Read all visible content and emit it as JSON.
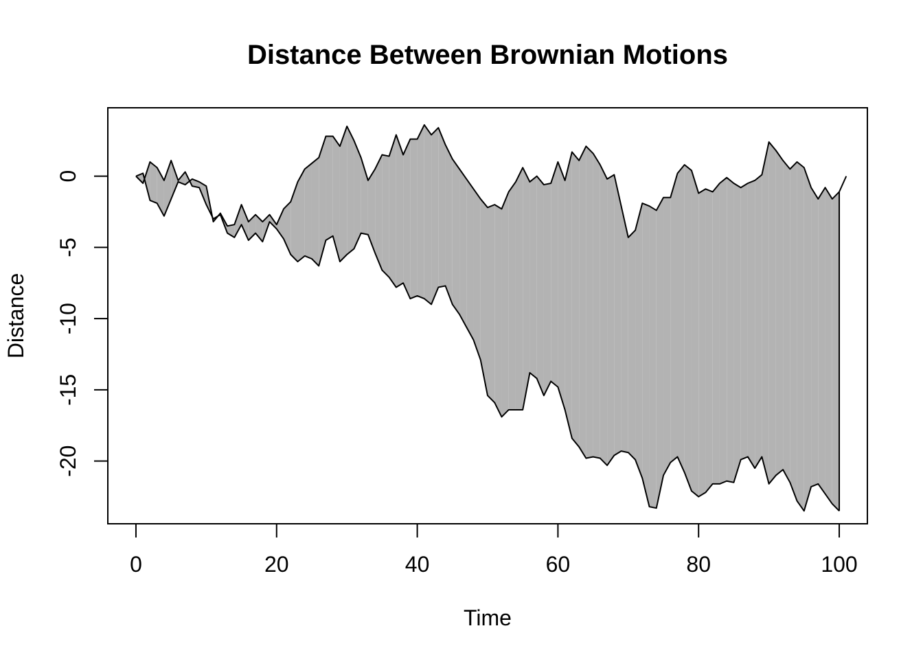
{
  "chart_data": {
    "type": "area",
    "title": "Distance Between Brownian Motions",
    "xlabel": "Time",
    "ylabel": "Distance",
    "xlim": [
      -4,
      104
    ],
    "ylim": [
      -24.4,
      4.8
    ],
    "x_ticks": [
      0,
      20,
      40,
      60,
      80,
      100
    ],
    "x_tick_labels": [
      "0",
      "20",
      "40",
      "60",
      "80",
      "100"
    ],
    "y_ticks": [
      0,
      -5,
      -10,
      -15,
      -20
    ],
    "y_tick_labels": [
      "0",
      "-5",
      "-10",
      "-15",
      "-20"
    ],
    "grid": false,
    "fill_color": "#b3b3b3",
    "line_color": "#000000",
    "series": [
      {
        "values": [
          0.0,
          0.2,
          -1.7,
          -1.9,
          -2.8,
          -1.6,
          -0.4,
          -0.6,
          -0.2,
          -0.4,
          -0.7,
          -3.2,
          -2.6,
          -3.5,
          -3.4,
          -2.0,
          -3.2,
          -2.7,
          -3.2,
          -2.7,
          -3.4,
          -2.3,
          -1.8,
          -0.4,
          0.5,
          0.9,
          1.3,
          2.8,
          2.8,
          2.1,
          3.5,
          2.5,
          1.3,
          -0.3,
          0.5,
          1.5,
          1.4,
          2.9,
          1.5,
          2.6,
          2.6,
          3.6,
          2.9,
          3.4,
          2.2,
          1.2,
          0.5,
          -0.2,
          -0.9,
          -1.6,
          -2.2,
          -2.0,
          -2.3,
          -1.1,
          -0.4,
          0.6,
          -0.4,
          0.0,
          -0.6,
          -0.5,
          1.0,
          -0.3,
          1.7,
          1.1,
          2.1,
          1.6,
          0.8,
          -0.2,
          0.1,
          -2.1,
          -4.3,
          -3.8,
          -1.9,
          -2.1,
          -2.4,
          -1.5,
          -1.5,
          0.2,
          0.8,
          0.4,
          -1.2,
          -0.9,
          -1.1,
          -0.5,
          -0.1,
          -0.5,
          -0.8,
          -0.5,
          -0.3,
          0.1,
          2.4,
          1.8,
          1.1,
          0.5,
          1.0,
          0.6,
          -0.8,
          -1.6,
          -0.8,
          -1.6,
          -1.1,
          0.0
        ]
      },
      {
        "values": [
          0.0,
          -0.5,
          1.0,
          0.6,
          -0.3,
          1.1,
          -0.3,
          0.3,
          -0.7,
          -0.8,
          -2.0,
          -3.0,
          -2.7,
          -4.0,
          -4.3,
          -3.4,
          -4.5,
          -4.0,
          -4.6,
          -3.2,
          -3.7,
          -4.4,
          -5.5,
          -6.0,
          -5.6,
          -5.8,
          -6.3,
          -4.5,
          -4.2,
          -6.0,
          -5.5,
          -5.1,
          -4.0,
          -4.1,
          -5.4,
          -6.6,
          -7.1,
          -7.8,
          -7.5,
          -8.6,
          -8.4,
          -8.6,
          -9.0,
          -7.8,
          -7.7,
          -9.0,
          -9.7,
          -10.6,
          -11.5,
          -12.9,
          -15.4,
          -15.9,
          -16.9,
          -16.4,
          -16.4,
          -16.4,
          -13.8,
          -14.2,
          -15.4,
          -14.4,
          -14.8,
          -16.4,
          -18.4,
          -19.0,
          -19.8,
          -19.7,
          -19.8,
          -20.3,
          -19.6,
          -19.3,
          -19.4,
          -19.9,
          -21.2,
          -23.2,
          -23.3,
          -21.0,
          -20.1,
          -19.7,
          -20.8,
          -22.1,
          -22.5,
          -22.2,
          -21.6,
          -21.6,
          -21.4,
          -21.5,
          -19.9,
          -19.7,
          -20.5,
          -19.7,
          -21.6,
          -21.0,
          -20.6,
          -21.5,
          -22.8,
          -23.5,
          -21.8,
          -21.6,
          -22.3,
          -23.0,
          -23.5
        ]
      }
    ]
  }
}
